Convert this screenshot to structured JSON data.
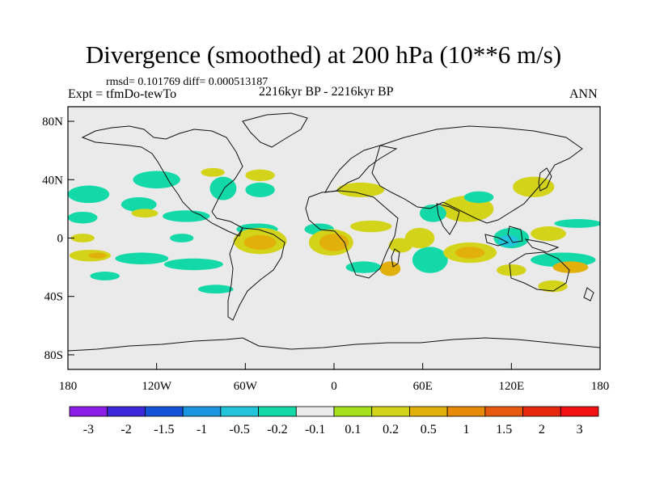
{
  "title": "Divergence (smoothed) at 200 hPa (10**6 m/s)",
  "stats": "rmsd= 0.101769 diff= 0.000513187",
  "experiment": "Expt = tfmDo-tewTo",
  "period": "2216kyr BP - 2216kyr BP",
  "season": "ANN",
  "chart_data": {
    "type": "heatmap",
    "title": "Divergence (smoothed) at 200 hPa (10**6 m/s)",
    "x_range": [
      -180,
      180
    ],
    "y_range": [
      -90,
      90
    ],
    "x_ticks": [
      {
        "value": -180,
        "label": "180"
      },
      {
        "value": -120,
        "label": "120W"
      },
      {
        "value": -60,
        "label": "60W"
      },
      {
        "value": 0,
        "label": "0"
      },
      {
        "value": 60,
        "label": "60E"
      },
      {
        "value": 120,
        "label": "120E"
      },
      {
        "value": 180,
        "label": "180"
      }
    ],
    "y_ticks": [
      {
        "value": 80,
        "label": "80N"
      },
      {
        "value": 40,
        "label": "40N"
      },
      {
        "value": 0,
        "label": "0"
      },
      {
        "value": -40,
        "label": "40S"
      },
      {
        "value": -80,
        "label": "80S"
      }
    ],
    "colorbar": {
      "colors": [
        "#8b1ce6",
        "#3b28d8",
        "#1553d6",
        "#1b95e0",
        "#21c4da",
        "#13d9a8",
        "#eaeaea",
        "#a6e01a",
        "#d3d41a",
        "#e2b00a",
        "#e68a07",
        "#e65a0e",
        "#e6280e",
        "#f21111"
      ],
      "labels": [
        "-3",
        "-2",
        "-1.5",
        "-1",
        "-0.5",
        "-0.2",
        "-0.1",
        "0.1",
        "0.2",
        "0.5",
        "1",
        "1.5",
        "2",
        "3"
      ]
    },
    "regions": [
      {
        "lon": -166,
        "lat": 30,
        "rx": 14,
        "ry": 6,
        "value": -0.3
      },
      {
        "lon": -132,
        "lat": 23,
        "rx": 12,
        "ry": 5,
        "value": -0.3
      },
      {
        "lon": -128,
        "lat": 17,
        "rx": 9,
        "ry": 3,
        "value": 0.15
      },
      {
        "lon": -100,
        "lat": 15,
        "rx": 16,
        "ry": 4,
        "value": -0.3
      },
      {
        "lon": -170,
        "lat": 14,
        "rx": 10,
        "ry": 4,
        "value": -0.3
      },
      {
        "lon": -170,
        "lat": 0,
        "rx": 8,
        "ry": 3,
        "value": 0.15
      },
      {
        "lon": -103,
        "lat": 0,
        "rx": 8,
        "ry": 3,
        "value": -0.3
      },
      {
        "lon": -52,
        "lat": 6,
        "rx": 14,
        "ry": 4,
        "value": -0.3
      },
      {
        "lon": -10,
        "lat": 6,
        "rx": 10,
        "ry": 4,
        "value": -0.3
      },
      {
        "lon": 25,
        "lat": 8,
        "rx": 14,
        "ry": 4,
        "value": 0.15
      },
      {
        "lon": 90,
        "lat": 20,
        "rx": 18,
        "ry": 9,
        "value": 0.15
      },
      {
        "lon": 67,
        "lat": 17,
        "rx": 9,
        "ry": 6,
        "value": -0.3
      },
      {
        "lon": 98,
        "lat": 28,
        "rx": 10,
        "ry": 4,
        "value": -0.3
      },
      {
        "lon": 135,
        "lat": 35,
        "rx": 14,
        "ry": 7,
        "value": 0.15
      },
      {
        "lon": 18,
        "lat": 33,
        "rx": 16,
        "ry": 5,
        "value": 0.15
      },
      {
        "lon": -50,
        "lat": 33,
        "rx": 10,
        "ry": 5,
        "value": -0.3
      },
      {
        "lon": -50,
        "lat": 43,
        "rx": 10,
        "ry": 4,
        "value": 0.15
      },
      {
        "lon": -75,
        "lat": 34,
        "rx": 9,
        "ry": 8,
        "value": -0.3
      },
      {
        "lon": -82,
        "lat": 45,
        "rx": 8,
        "ry": 3,
        "value": 0.15
      },
      {
        "lon": -120,
        "lat": 40,
        "rx": 16,
        "ry": 6,
        "value": -0.3
      },
      {
        "lon": -50,
        "lat": -2,
        "rx": 18,
        "ry": 9,
        "value": 0.15
      },
      {
        "lon": -50,
        "lat": -3,
        "rx": 11,
        "ry": 5,
        "value": 0.5
      },
      {
        "lon": -2,
        "lat": -3,
        "rx": 15,
        "ry": 9,
        "value": 0.15
      },
      {
        "lon": 0,
        "lat": -3,
        "rx": 10,
        "ry": 6,
        "value": 0.5
      },
      {
        "lon": 20,
        "lat": -20,
        "rx": 12,
        "ry": 4,
        "value": -0.3
      },
      {
        "lon": 38,
        "lat": -21,
        "rx": 7,
        "ry": 5,
        "value": 0.5
      },
      {
        "lon": 65,
        "lat": -15,
        "rx": 12,
        "ry": 9,
        "value": -0.3
      },
      {
        "lon": 58,
        "lat": 0,
        "rx": 10,
        "ry": 7,
        "value": 0.15
      },
      {
        "lon": 45,
        "lat": -5,
        "rx": 8,
        "ry": 5,
        "value": 0.15
      },
      {
        "lon": 92,
        "lat": -10,
        "rx": 18,
        "ry": 7,
        "value": 0.15
      },
      {
        "lon": 92,
        "lat": -10,
        "rx": 10,
        "ry": 4,
        "value": 0.5
      },
      {
        "lon": 120,
        "lat": 0,
        "rx": 12,
        "ry": 7,
        "value": -0.3
      },
      {
        "lon": 118,
        "lat": -2,
        "rx": 7,
        "ry": 4,
        "value": -0.7
      },
      {
        "lon": 145,
        "lat": 3,
        "rx": 12,
        "ry": 5,
        "value": 0.15
      },
      {
        "lon": 165,
        "lat": 10,
        "rx": 16,
        "ry": 3,
        "value": -0.3
      },
      {
        "lon": 155,
        "lat": -15,
        "rx": 22,
        "ry": 5,
        "value": -0.3
      },
      {
        "lon": 160,
        "lat": -20,
        "rx": 12,
        "ry": 4,
        "value": 0.5
      },
      {
        "lon": 120,
        "lat": -22,
        "rx": 10,
        "ry": 4,
        "value": 0.15
      },
      {
        "lon": -130,
        "lat": -14,
        "rx": 18,
        "ry": 4,
        "value": -0.3
      },
      {
        "lon": -95,
        "lat": -18,
        "rx": 20,
        "ry": 4,
        "value": -0.3
      },
      {
        "lon": -165,
        "lat": -12,
        "rx": 14,
        "ry": 4,
        "value": 0.15
      },
      {
        "lon": -160,
        "lat": -12,
        "rx": 6,
        "ry": 2,
        "value": 0.5
      },
      {
        "lon": -155,
        "lat": -26,
        "rx": 10,
        "ry": 3,
        "value": -0.3
      },
      {
        "lon": -80,
        "lat": -35,
        "rx": 12,
        "ry": 3,
        "value": -0.3
      },
      {
        "lon": 148,
        "lat": -33,
        "rx": 10,
        "ry": 4,
        "value": 0.15
      }
    ]
  }
}
